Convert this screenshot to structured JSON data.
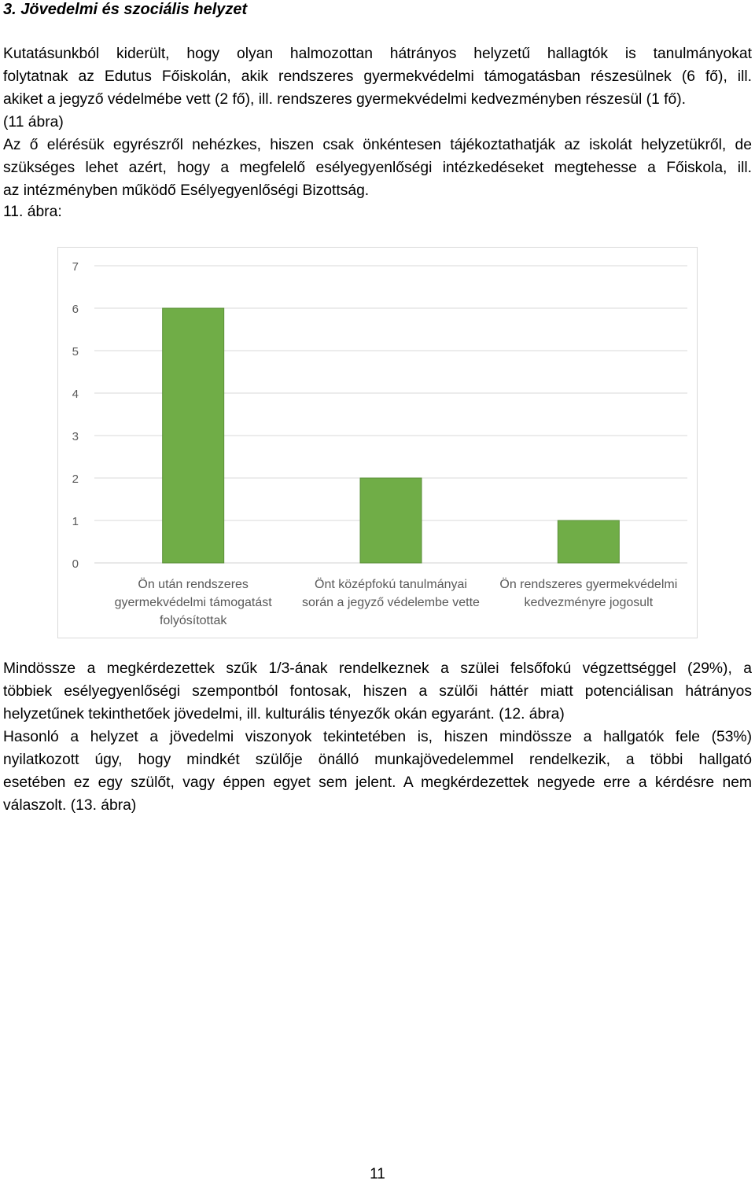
{
  "heading": "3. Jövedelmi és szociális helyzet",
  "paragraph1_lines": [
    "Kutatásunkból kiderült, hogy olyan halmozottan hátrányos helyzetű hallagtók is tanulmányokat",
    "folytatnak az Edutus Főiskolán, akik rendszeres gyermekvédelmi támogatásban részesülnek (6 fő), ill.",
    "akiket a jegyző védelmébe vett (2 fő), ill. rendszeres gyermekvédelmi kedvezményben részesül (1 fő).",
    "(11 ábra)",
    "Az ő elérésük egyrészről nehézkes, hiszen csak önkéntesen tájékoztathatják az iskolát helyzetükről, de",
    "szükséges lehet azért, hogy a megfelelő esélyegyenlőségi intézkedéseket megtehesse a Főiskola, ill.",
    "az intézményben működő Esélyegyenlőségi Bizottság."
  ],
  "figure_caption": "11. ábra:",
  "chart_data": {
    "type": "bar",
    "categories": [
      [
        "Ön után rendszeres",
        "gyermekvédelmi támogatást",
        "folyósítottak"
      ],
      [
        "Önt középfokú tanulmányai",
        "során a jegyző védelembe vette"
      ],
      [
        "Ön rendszeres gyermekvédelmi",
        "kedvezményre jogosult"
      ]
    ],
    "values": [
      6,
      2,
      1
    ],
    "ylim": [
      0,
      7
    ],
    "yticks": [
      "0",
      "1",
      "2",
      "3",
      "4",
      "5",
      "6",
      "7"
    ],
    "grid": true,
    "bar_color": "#70ad47",
    "bar_edge_color": "#5a8f38",
    "gridline_color": "#d9d9d9",
    "label_color": "#595959"
  },
  "paragraph2_lines": [
    "Mindössze a megkérdezettek szűk 1/3-ának rendelkeznek a szülei felsőfokú végzettséggel (29%), a",
    "többiek esélyegyenlőségi szempontból fontosak, hiszen a szülői háttér miatt potenciálisan hátrányos",
    "helyzetűnek tekinthetőek jövedelmi, ill. kulturális tényezők okán egyaránt. (12. ábra)",
    "Hasonló a helyzet a jövedelmi viszonyok tekintetében is, hiszen mindössze a hallgatók fele (53%)",
    "nyilatkozott úgy, hogy mindkét szülője önálló munkajövedelemmel rendelkezik, a többi hallgató",
    "esetében ez egy szülőt, vagy éppen egyet sem jelent. A megkérdezettek negyede erre a kérdésre nem",
    "válaszolt. (13. ábra)"
  ],
  "page_number": "11"
}
